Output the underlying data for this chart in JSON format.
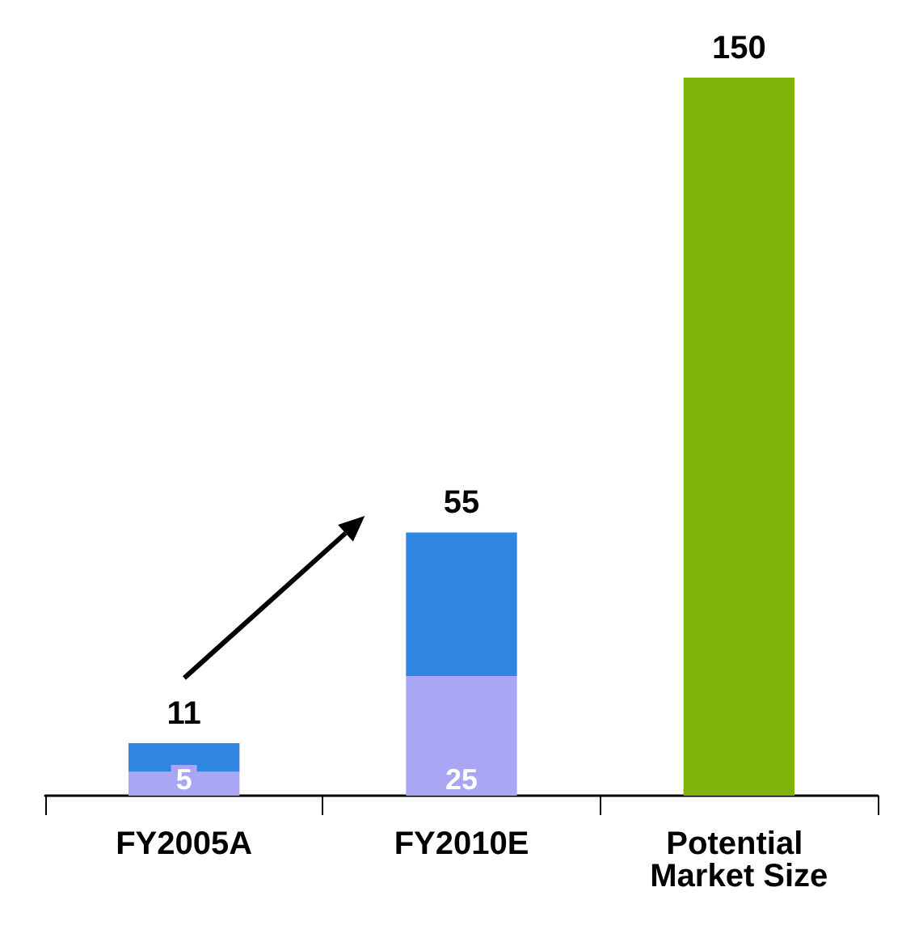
{
  "chart_data": {
    "type": "bar",
    "stacked": true,
    "categories": [
      "FY2005A",
      "FY2010E",
      "Potential Market Size"
    ],
    "series": [
      {
        "color": "#a9a6f5",
        "values": [
          5,
          25,
          null
        ],
        "value_labels": [
          "5",
          "25",
          null
        ]
      },
      {
        "color": "#2f86e0",
        "values": [
          6,
          30,
          null
        ]
      },
      {
        "color": "#7fb20a",
        "values": [
          null,
          null,
          150
        ]
      }
    ],
    "totals": [
      "11",
      "55",
      "150"
    ],
    "grid": false
  }
}
